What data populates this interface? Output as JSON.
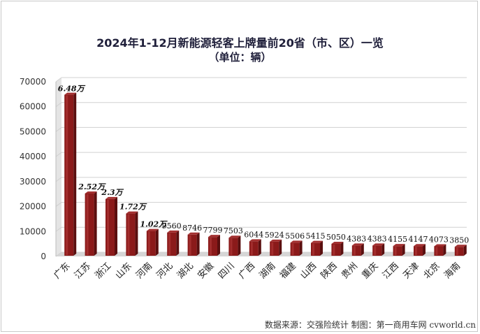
{
  "chart_data": {
    "type": "bar",
    "title": "2024年1-12月新能源轻客上牌量前20省（市、区）一览",
    "subtitle": "（单位：辆）",
    "categories": [
      "广东",
      "江苏",
      "浙江",
      "山东",
      "河南",
      "河北",
      "湖北",
      "安徽",
      "四川",
      "广西",
      "湖南",
      "福建",
      "山西",
      "陕西",
      "贵州",
      "重庆",
      "江西",
      "天津",
      "北京",
      "海南"
    ],
    "values": [
      64800,
      25200,
      23000,
      17200,
      10200,
      9560,
      8746,
      7799,
      7503,
      6044,
      5924,
      5506,
      5415,
      5050,
      4383,
      4383,
      4155,
      4147,
      4073,
      3850
    ],
    "data_labels": [
      "6.48万",
      "2.52万",
      "2.3万",
      "1.72万",
      "1.02万",
      "9560",
      "8746",
      "7799",
      "7503",
      "6044",
      "5924",
      "5506",
      "5415",
      "5050",
      "4383",
      "4383",
      "4155",
      "4147",
      "4073",
      "3850"
    ],
    "ylim": [
      0,
      70000
    ],
    "yticks": [
      "0",
      "10000",
      "20000",
      "30000",
      "40000",
      "50000",
      "60000",
      "70000"
    ],
    "grid": true,
    "bar_color": "#8b1a1a",
    "source": "数据来源：交强险统计 制图：第一商用车网 cvworld.cn"
  }
}
